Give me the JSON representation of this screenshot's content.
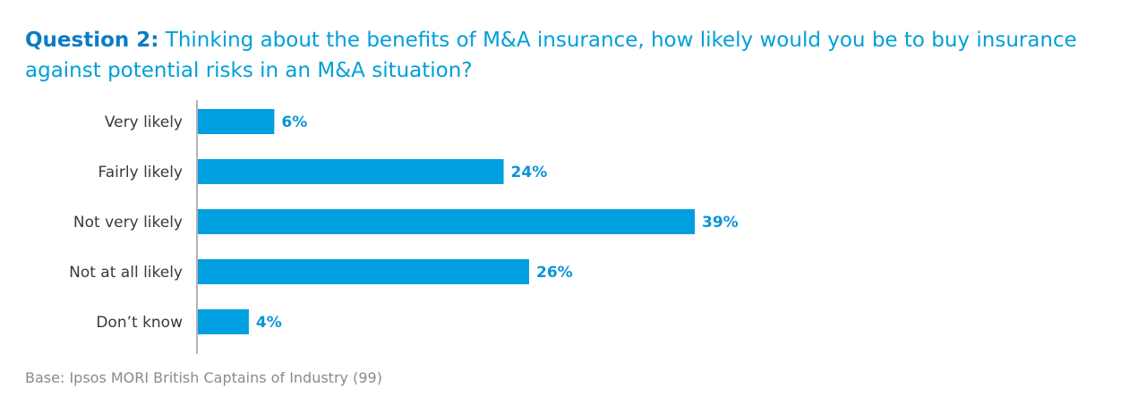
{
  "question": {
    "label": "Question 2:",
    "text": " Thinking about the benefits of M&A insurance, how likely would you be to buy insurance against potential risks in an M&A situation?"
  },
  "chart_data": {
    "type": "bar",
    "orientation": "horizontal",
    "categories": [
      "Very likely",
      "Fairly likely",
      "Not very likely",
      "Not at all likely",
      "Don’t know"
    ],
    "values": [
      6,
      24,
      39,
      26,
      4
    ],
    "value_labels": [
      "6%",
      "24%",
      "39%",
      "26%",
      "4%"
    ],
    "unit": "%",
    "xlim": [
      0,
      100
    ],
    "grid": false,
    "legend": "none"
  },
  "colors": {
    "bar": "#009fdf",
    "value_label": "#0a95d6",
    "category_label": "#3a3a3a",
    "axis": "#9a9a9a"
  },
  "footer": {
    "base": "Base: Ipsos MORI British Captains of Industry (99)"
  }
}
